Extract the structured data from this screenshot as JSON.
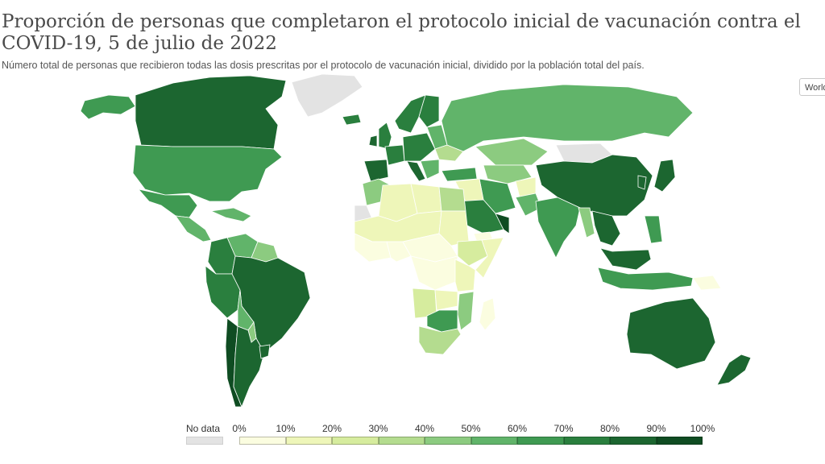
{
  "header": {
    "title": "Proporción de personas que completaron el protocolo inicial de vacunación contra el COVID-19, 5 de julio de 2022",
    "subtitle": "Número total de personas que recibieron todas las dosis prescritas por el protocolo de vacunación inicial, dividido por la población total del país.",
    "region_select": "World"
  },
  "legend": {
    "nodata_label": "No data",
    "nodata_color": "#e3e3e3",
    "ticks": [
      "0%",
      "10%",
      "20%",
      "30%",
      "40%",
      "50%",
      "60%",
      "70%",
      "80%",
      "90%",
      "100%"
    ],
    "colors": [
      "#fbfde0",
      "#eef6b9",
      "#d6ec9e",
      "#b4dc8f",
      "#8ccb80",
      "#61b46a",
      "#3f9a52",
      "#2a7f3e",
      "#1c6630",
      "#0f4c22"
    ]
  },
  "map_data": {
    "type": "choropleth",
    "metric": "Proporción de personas con protocolo inicial completo (%)",
    "regions": [
      {
        "name": "Canada",
        "value": 83
      },
      {
        "name": "Alaska",
        "value": 62
      },
      {
        "name": "Greenland",
        "value": null
      },
      {
        "name": "United States",
        "value": 67
      },
      {
        "name": "Mexico",
        "value": 63
      },
      {
        "name": "Central America",
        "value": 58
      },
      {
        "name": "Caribbean",
        "value": 55
      },
      {
        "name": "Venezuela",
        "value": 50
      },
      {
        "name": "Guianas",
        "value": 45
      },
      {
        "name": "Colombia",
        "value": 70
      },
      {
        "name": "Ecuador/Peru",
        "value": 78
      },
      {
        "name": "Brazil",
        "value": 80
      },
      {
        "name": "Bolivia",
        "value": 50
      },
      {
        "name": "Paraguay",
        "value": 48
      },
      {
        "name": "Chile",
        "value": 91
      },
      {
        "name": "Argentina",
        "value": 82
      },
      {
        "name": "Uruguay",
        "value": 83
      },
      {
        "name": "Iceland",
        "value": 78
      },
      {
        "name": "United Kingdom",
        "value": 75
      },
      {
        "name": "Ireland",
        "value": 81
      },
      {
        "name": "Scandinavia",
        "value": 75
      },
      {
        "name": "Finland",
        "value": 77
      },
      {
        "name": "Iberia",
        "value": 86
      },
      {
        "name": "France",
        "value": 78
      },
      {
        "name": "Central Europe",
        "value": 74
      },
      {
        "name": "Italy",
        "value": 80
      },
      {
        "name": "Eastern Europe",
        "value": 55
      },
      {
        "name": "Ukraine",
        "value": 35
      },
      {
        "name": "Balkans",
        "value": 50
      },
      {
        "name": "Turkey",
        "value": 62
      },
      {
        "name": "Russia",
        "value": 51
      },
      {
        "name": "Kazakhstan",
        "value": 49
      },
      {
        "name": "Central Asia",
        "value": 42
      },
      {
        "name": "Mongolia",
        "value": null
      },
      {
        "name": "China",
        "value": 89
      },
      {
        "name": "Korea",
        "value": 86
      },
      {
        "name": "Japan",
        "value": 82
      },
      {
        "name": "Iran",
        "value": 67
      },
      {
        "name": "Iraq/Syria",
        "value": 15
      },
      {
        "name": "Saudi Arabia",
        "value": 70
      },
      {
        "name": "Yemen",
        "value": 2
      },
      {
        "name": "Oman/UAE",
        "value": 95
      },
      {
        "name": "Afghanistan",
        "value": 12
      },
      {
        "name": "Pakistan",
        "value": 50
      },
      {
        "name": "India",
        "value": 66
      },
      {
        "name": "Myanmar",
        "value": 45
      },
      {
        "name": "Thailand/Vietnam",
        "value": 80
      },
      {
        "name": "Malaysia",
        "value": 82
      },
      {
        "name": "Philippines",
        "value": 62
      },
      {
        "name": "Indonesia",
        "value": 61
      },
      {
        "name": "Papua New Guinea",
        "value": 3
      },
      {
        "name": "Australia",
        "value": 84
      },
      {
        "name": "New Zealand",
        "value": 80
      },
      {
        "name": "North Africa (Maghreb)",
        "value": 45
      },
      {
        "name": "Algeria",
        "value": 15
      },
      {
        "name": "Libya",
        "value": 17
      },
      {
        "name": "Egypt",
        "value": 30
      },
      {
        "name": "Western Sahara",
        "value": null
      },
      {
        "name": "Sahel",
        "value": 10
      },
      {
        "name": "West Africa",
        "value": 8
      },
      {
        "name": "Nigeria",
        "value": 5
      },
      {
        "name": "Sudan",
        "value": 12
      },
      {
        "name": "Ethiopia",
        "value": 25
      },
      {
        "name": "Somalia",
        "value": 12
      },
      {
        "name": "Central Africa",
        "value": 3
      },
      {
        "name": "DR Congo",
        "value": 2
      },
      {
        "name": "Kenya/Tanzania",
        "value": 15
      },
      {
        "name": "Angola",
        "value": 20
      },
      {
        "name": "Zambia",
        "value": 18
      },
      {
        "name": "Mozambique",
        "value": 42
      },
      {
        "name": "Botswana/Zimbabwe",
        "value": 60
      },
      {
        "name": "South Africa",
        "value": 32
      },
      {
        "name": "Madagascar",
        "value": 3
      }
    ]
  }
}
